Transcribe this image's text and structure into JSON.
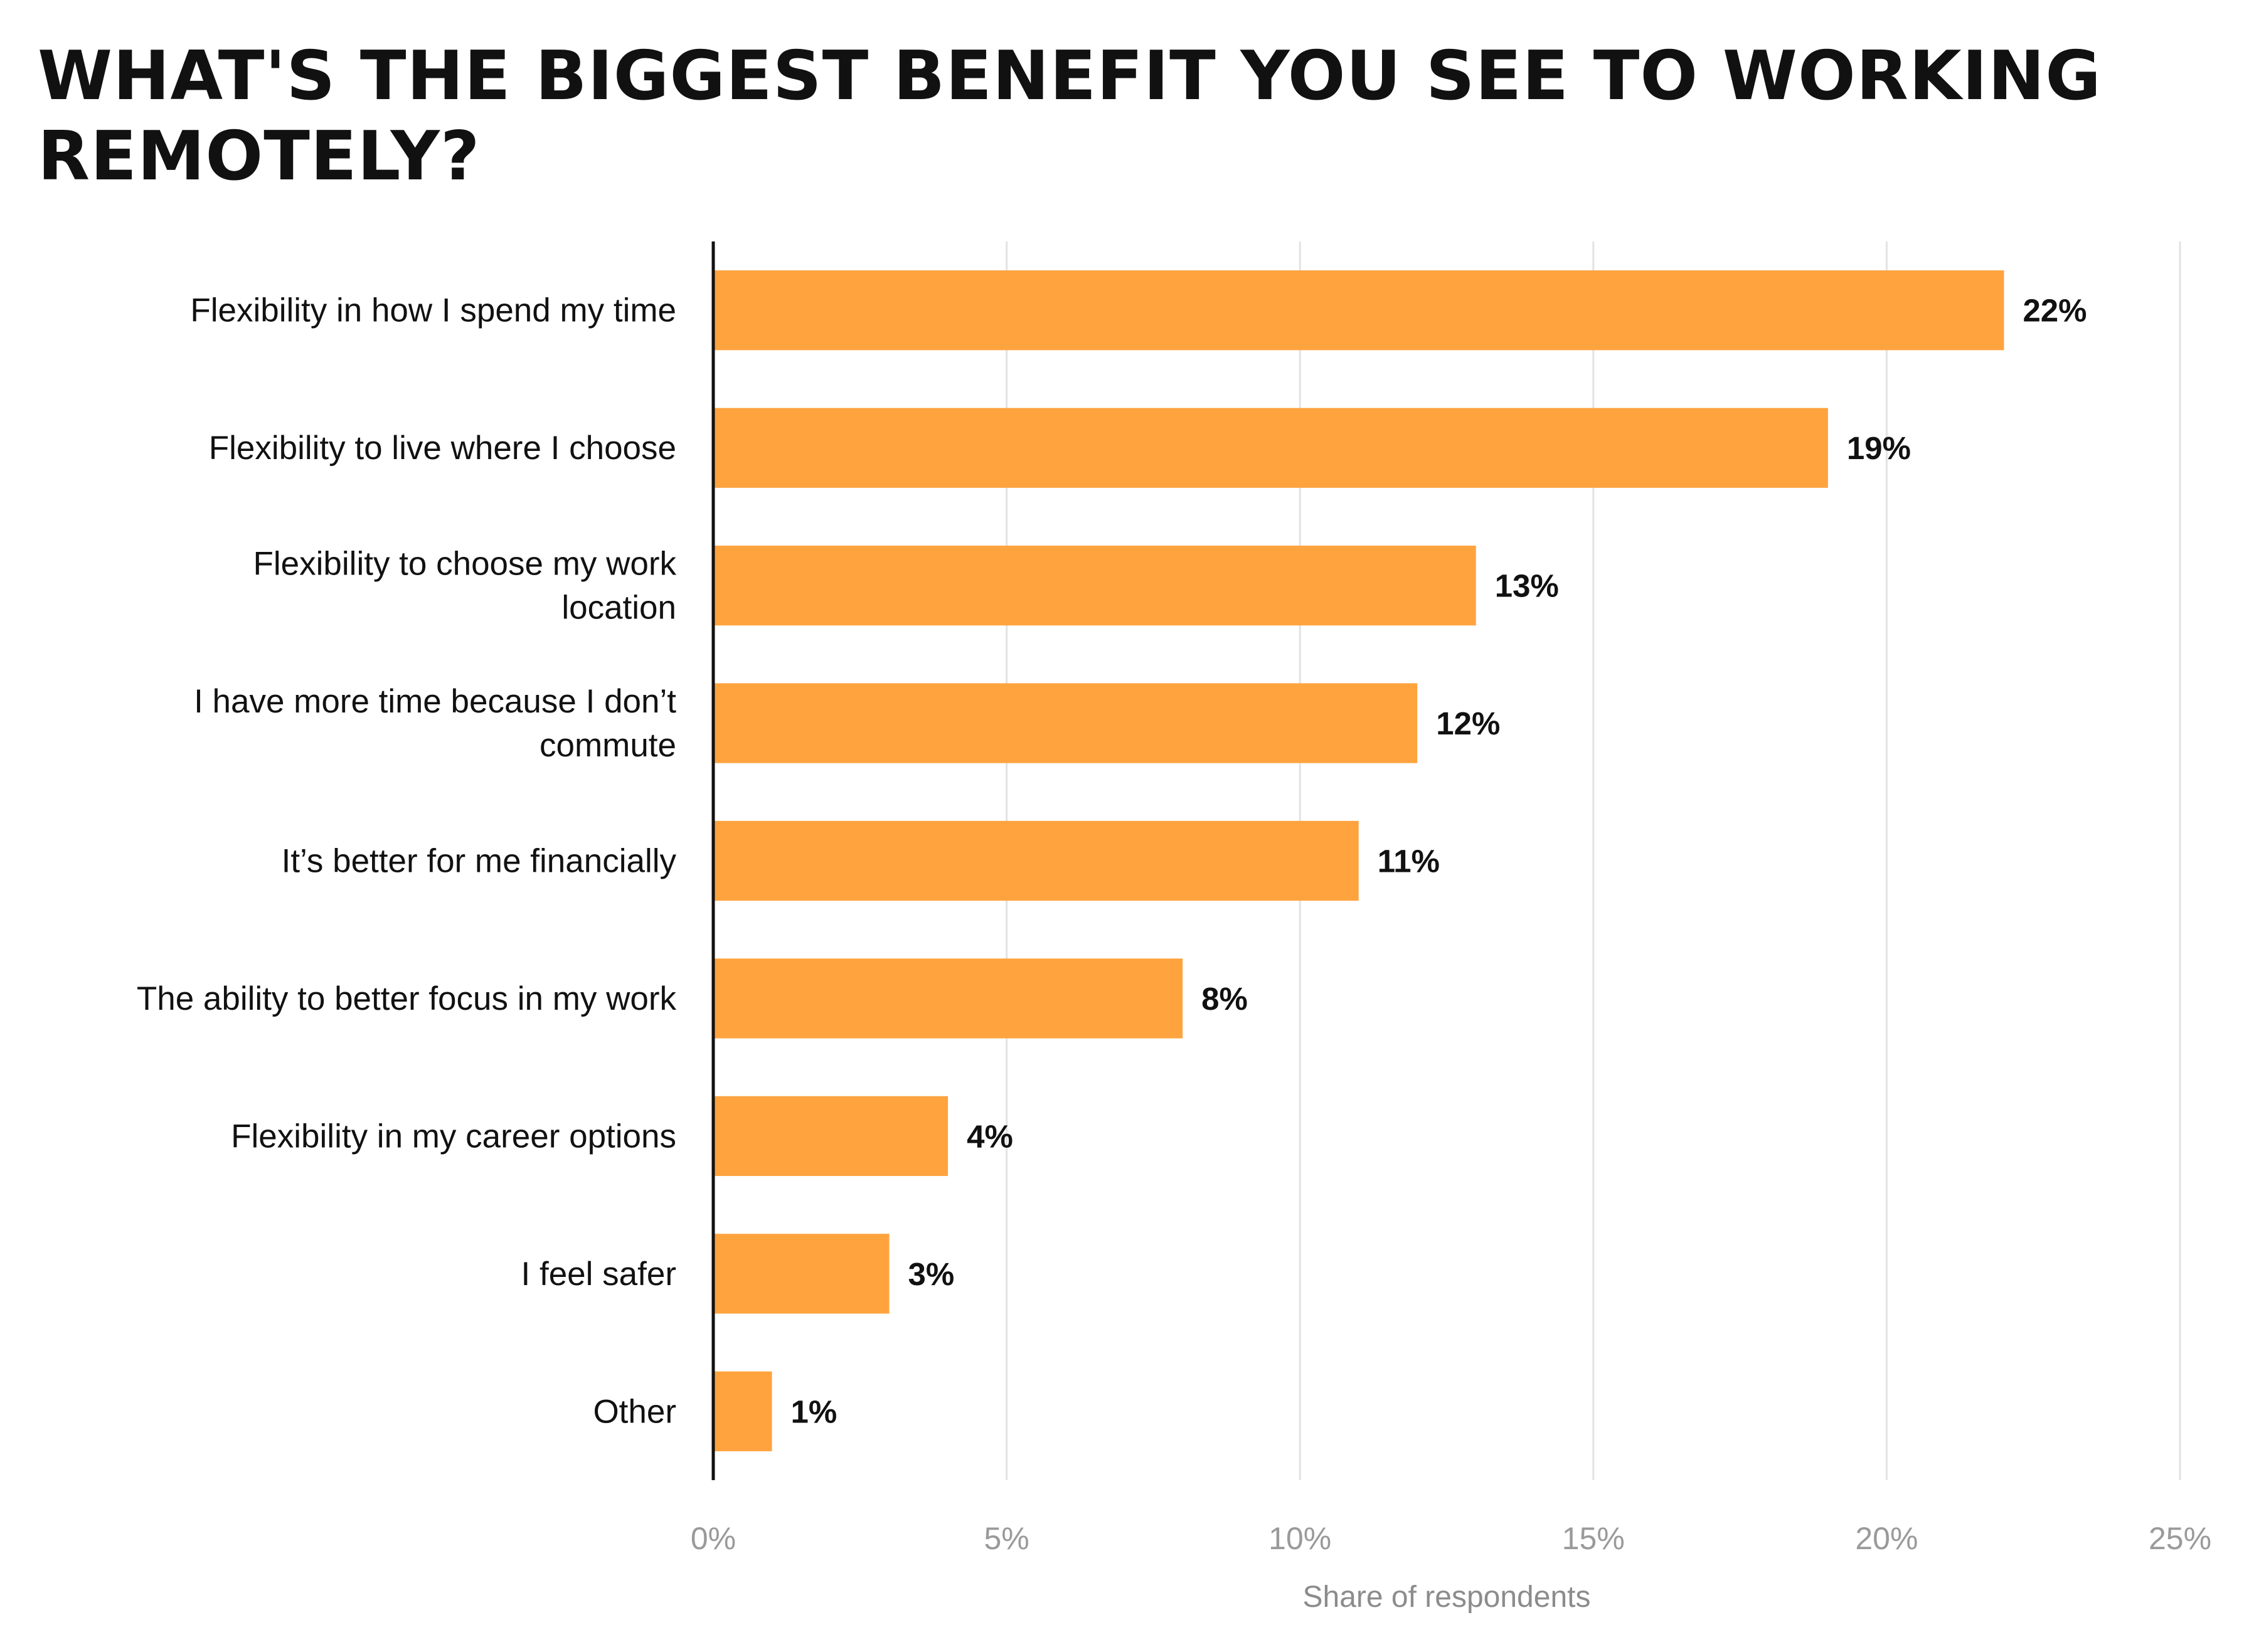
{
  "chart_data": {
    "type": "bar",
    "orientation": "horizontal",
    "title": "WHAT'S THE BIGGEST BENEFIT YOU SEE TO WORKING REMOTELY?",
    "xlabel": "Share of respondents",
    "ylabel": "",
    "xlim": [
      0,
      25
    ],
    "grid": true,
    "bar_color": "#FFA33F",
    "categories": [
      [
        "Flexibility in how I spend my time"
      ],
      [
        "Flexibility to live where I choose"
      ],
      [
        "Flexibility to choose my work",
        "location"
      ],
      [
        "I have more time because I don’t",
        "commute"
      ],
      [
        "It’s better for me financially"
      ],
      [
        "The ability to better focus in my work"
      ],
      [
        "Flexibility in my career options"
      ],
      [
        "I feel safer"
      ],
      [
        "Other"
      ]
    ],
    "values": [
      22,
      19,
      13,
      12,
      11,
      8,
      4,
      3,
      1
    ],
    "value_labels": [
      "22%",
      "19%",
      "13%",
      "12%",
      "11%",
      "8%",
      "4%",
      "3%",
      "1%"
    ],
    "x_ticks": [
      0,
      5,
      10,
      15,
      20,
      25
    ],
    "x_tick_labels": [
      "0%",
      "5%",
      "10%",
      "15%",
      "20%",
      "25%"
    ]
  }
}
